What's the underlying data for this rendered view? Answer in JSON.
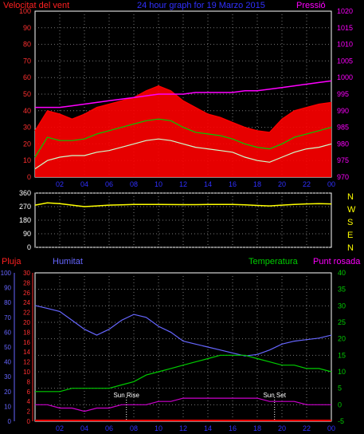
{
  "chart_data": [
    {
      "type": "line",
      "title": "24 hour graph for 19 Marzo 2015",
      "left_label": "Velocitat del vent",
      "right_label": "Pressió",
      "x_ticks": [
        "02",
        "04",
        "06",
        "08",
        "10",
        "12",
        "14",
        "16",
        "18",
        "20",
        "22",
        "00"
      ],
      "y_left_ticks": [
        "0",
        "10",
        "20",
        "30",
        "40",
        "50",
        "60",
        "70",
        "80",
        "90",
        "100"
      ],
      "y_right_ticks": [
        "970",
        "975",
        "980",
        "985",
        "990",
        "995",
        "1000",
        "1005",
        "1010",
        "1015",
        "1020"
      ],
      "ylim_left": [
        0,
        100
      ],
      "ylim_right": [
        970,
        1020
      ],
      "grid": true,
      "colors": {
        "gust": "#ff0000",
        "average": "#00cc00",
        "speed": "#ccffcc",
        "pressure": "#ff00ff"
      },
      "x": [
        0,
        1,
        2,
        3,
        4,
        5,
        6,
        7,
        8,
        9,
        10,
        11,
        12,
        13,
        14,
        15,
        16,
        17,
        18,
        19,
        20,
        21,
        22,
        23,
        24
      ],
      "series": [
        {
          "key": "gust",
          "values": [
            28,
            40,
            38,
            35,
            38,
            42,
            44,
            46,
            48,
            52,
            55,
            52,
            46,
            42,
            38,
            36,
            33,
            30,
            28,
            27,
            35,
            40,
            42,
            44,
            45
          ]
        },
        {
          "key": "average",
          "values": [
            12,
            24,
            22,
            22,
            23,
            26,
            28,
            30,
            32,
            34,
            35,
            34,
            30,
            27,
            26,
            25,
            23,
            20,
            18,
            17,
            20,
            24,
            26,
            28,
            30
          ]
        },
        {
          "key": "speed",
          "values": [
            5,
            10,
            12,
            13,
            13,
            15,
            16,
            18,
            20,
            22,
            23,
            22,
            20,
            18,
            17,
            16,
            15,
            12,
            10,
            9,
            12,
            15,
            17,
            18,
            20
          ]
        },
        {
          "key": "pressure",
          "values": [
            991,
            991,
            991,
            991.5,
            992,
            992.5,
            993,
            993.5,
            994,
            994.5,
            995,
            995,
            995,
            995.5,
            995.5,
            995.5,
            995.5,
            996,
            996,
            996.5,
            997,
            997.5,
            998,
            998.5,
            999
          ]
        }
      ]
    },
    {
      "type": "line",
      "right_labels": [
        "N",
        "W",
        "S",
        "E",
        "N"
      ],
      "y_ticks": [
        "360",
        "270",
        "180",
        "90",
        "0"
      ],
      "ylim": [
        0,
        360
      ],
      "colors": {
        "direction": "#ffff00"
      },
      "x": [
        0,
        1,
        2,
        3,
        4,
        5,
        6,
        7,
        8,
        9,
        10,
        11,
        12,
        13,
        14,
        15,
        16,
        17,
        18,
        19,
        20,
        21,
        22,
        23,
        24
      ],
      "series": [
        {
          "key": "direction",
          "values": [
            280,
            295,
            290,
            280,
            270,
            275,
            280,
            282,
            285,
            285,
            285,
            284,
            283,
            283,
            285,
            285,
            285,
            282,
            278,
            275,
            280,
            285,
            288,
            290,
            288
          ]
        }
      ]
    },
    {
      "type": "line",
      "labels": {
        "rain": "Pluja",
        "humidity": "Humitat",
        "temperature": "Temperatura",
        "dewpoint": "Punt rosada"
      },
      "y_rain_ticks": [
        "0",
        "2",
        "4",
        "6",
        "8",
        "10",
        "12",
        "14",
        "16",
        "18",
        "20",
        "22",
        "24",
        "26",
        "28",
        "30"
      ],
      "y_humidity_ticks": [
        "0",
        "10",
        "20",
        "30",
        "40",
        "50",
        "60",
        "70",
        "80",
        "90",
        "100"
      ],
      "y_temp_ticks": [
        "-5",
        "0",
        "5",
        "10",
        "15",
        "20",
        "25",
        "30",
        "35",
        "40"
      ],
      "ylim_humidity": [
        0,
        100
      ],
      "ylim_temp": [
        -5,
        40
      ],
      "annotations": [
        "Sun Rise",
        "Sun Set"
      ],
      "sunrise_hour": 7.4,
      "sunset_hour": 19.4,
      "colors": {
        "rain": "#ff0000",
        "humidity": "#6666ff",
        "temperature": "#00cc00",
        "dewpoint": "#cc00cc"
      },
      "x": [
        0,
        1,
        2,
        3,
        4,
        5,
        6,
        7,
        8,
        9,
        10,
        11,
        12,
        13,
        14,
        15,
        16,
        17,
        18,
        19,
        20,
        21,
        22,
        23,
        24
      ],
      "series": [
        {
          "key": "humidity",
          "values": [
            78,
            76,
            74,
            68,
            62,
            58,
            62,
            68,
            72,
            70,
            64,
            60,
            54,
            52,
            50,
            48,
            46,
            44,
            45,
            48,
            52,
            54,
            55,
            56,
            58
          ]
        },
        {
          "key": "temperature",
          "values": [
            4,
            4,
            4,
            5,
            5,
            5,
            5,
            6,
            7,
            9,
            10,
            11,
            12,
            13,
            14,
            15,
            15,
            15,
            14,
            13,
            12,
            12,
            11,
            11,
            10
          ]
        },
        {
          "key": "dewpoint",
          "values": [
            0,
            0,
            -1,
            -1,
            -2,
            -1,
            -1,
            0,
            0,
            0,
            1,
            1,
            2,
            2,
            2,
            2,
            2,
            2,
            2,
            1,
            1,
            1,
            0,
            0,
            0
          ]
        },
        {
          "key": "rain",
          "values": [
            0,
            0,
            0,
            0,
            0,
            0,
            0,
            0,
            0,
            0,
            0,
            0,
            0,
            0,
            0,
            0,
            0,
            0,
            0,
            0,
            0,
            0,
            0,
            0,
            0
          ]
        }
      ]
    }
  ]
}
